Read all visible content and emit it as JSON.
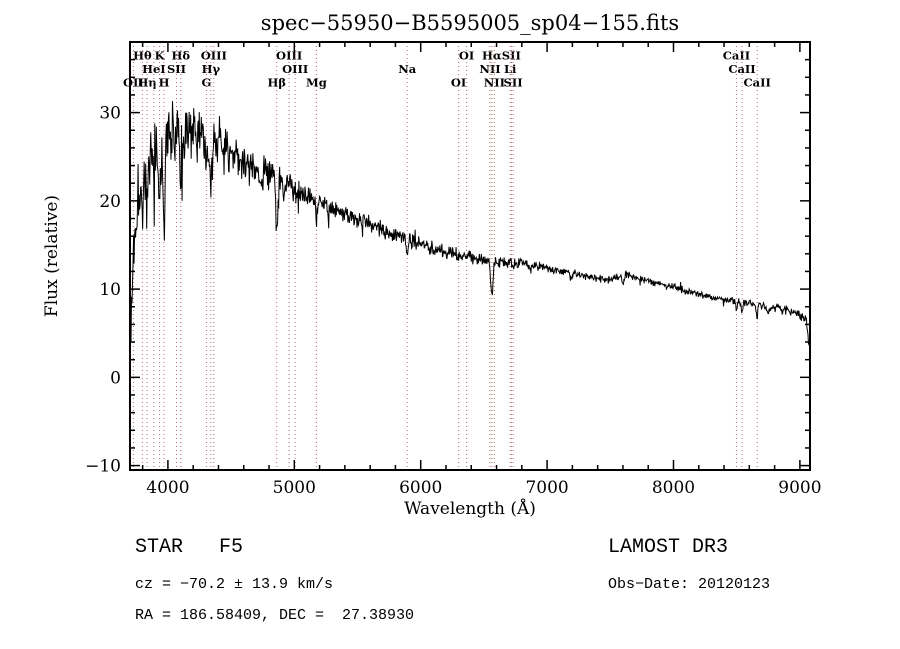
{
  "title": "spec−55950−B5595005_sp04−155.fits",
  "footer": {
    "class_label": "STAR   F5",
    "survey": "LAMOST DR3",
    "cz": "cz = −70.2 ± 13.9 km/s",
    "obs_date": "Obs−Date: 20120123",
    "radec": "RA = 186.58409, DEC =  27.38930"
  },
  "chart_data": {
    "type": "line",
    "title": "spec−55950−B5595005_sp04−155.fits",
    "xlabel": "Wavelength (Å)",
    "ylabel": "Flux (relative)",
    "xlim": [
      3700,
      9080
    ],
    "ylim": [
      -10.5,
      38
    ],
    "xticks": [
      4000,
      5000,
      6000,
      7000,
      8000,
      9000
    ],
    "yticks": [
      -10,
      0,
      10,
      20,
      30
    ],
    "ytick_labels": [
      "−10",
      "0",
      "10",
      "20",
      "30"
    ],
    "x_minor_step": 200,
    "y_minor_step": 2,
    "grid": false,
    "trace_color": "#000000",
    "line_marker_color": "#b36b6b",
    "label_color": "#7e2a2a",
    "spectral_lines": [
      {
        "wavelength": 3727,
        "label": "OII",
        "row": 3
      },
      {
        "wavelength": 3798,
        "label": "Hθ",
        "row": 1
      },
      {
        "wavelength": 3835,
        "label": "Hη",
        "row": 3
      },
      {
        "wavelength": 3889,
        "label": "HeI",
        "row": 2
      },
      {
        "wavelength": 3934,
        "label": "K",
        "row": 1
      },
      {
        "wavelength": 3969,
        "label": "H",
        "row": 3
      },
      {
        "wavelength": 4068,
        "label": "SII",
        "row": 2
      },
      {
        "wavelength": 4102,
        "label": "Hδ",
        "row": 1
      },
      {
        "wavelength": 4305,
        "label": "G",
        "row": 3
      },
      {
        "wavelength": 4340,
        "label": "Hγ",
        "row": 2
      },
      {
        "wavelength": 4363,
        "label": "OIII",
        "row": 1
      },
      {
        "wavelength": 4861,
        "label": "Hβ",
        "row": 3
      },
      {
        "wavelength": 4959,
        "label": "OIII",
        "row": 1
      },
      {
        "wavelength": 5007,
        "label": "OIII",
        "row": 2
      },
      {
        "wavelength": 5175,
        "label": "Mg",
        "row": 3
      },
      {
        "wavelength": 5893,
        "label": "Na",
        "row": 2
      },
      {
        "wavelength": 6300,
        "label": "OI",
        "row": 3
      },
      {
        "wavelength": 6363,
        "label": "OI",
        "row": 1
      },
      {
        "wavelength": 6548,
        "label": "NII",
        "row": 2
      },
      {
        "wavelength": 6563,
        "label": "Hα",
        "row": 1
      },
      {
        "wavelength": 6583,
        "label": "NII",
        "row": 3
      },
      {
        "wavelength": 6708,
        "label": "Li",
        "row": 2
      },
      {
        "wavelength": 6717,
        "label": "SII",
        "row": 1
      },
      {
        "wavelength": 6731,
        "label": "SII",
        "row": 3
      },
      {
        "wavelength": 8498,
        "label": "CaII",
        "row": 1
      },
      {
        "wavelength": 8542,
        "label": "CaII",
        "row": 2
      },
      {
        "wavelength": 8662,
        "label": "CaII",
        "row": 3
      }
    ],
    "continuum": [
      [
        3700,
        2
      ],
      [
        3712,
        8
      ],
      [
        3725,
        14
      ],
      [
        3745,
        19
      ],
      [
        3770,
        22
      ],
      [
        3800,
        23.5
      ],
      [
        3840,
        25
      ],
      [
        3880,
        26
      ],
      [
        3920,
        26.8
      ],
      [
        3960,
        27.2
      ],
      [
        4000,
        27.5
      ],
      [
        4060,
        27.8
      ],
      [
        4120,
        28
      ],
      [
        4200,
        27.8
      ],
      [
        4280,
        27.4
      ],
      [
        4360,
        26.8
      ],
      [
        4440,
        26
      ],
      [
        4520,
        25.2
      ],
      [
        4600,
        24.5
      ],
      [
        4700,
        23.6
      ],
      [
        4800,
        23
      ],
      [
        4900,
        22.2
      ],
      [
        5000,
        21.3
      ],
      [
        5100,
        20.5
      ],
      [
        5200,
        19.8
      ],
      [
        5300,
        19.1
      ],
      [
        5400,
        18.5
      ],
      [
        5500,
        17.9
      ],
      [
        5600,
        17.3
      ],
      [
        5700,
        16.7
      ],
      [
        5800,
        16.1
      ],
      [
        5900,
        15.6
      ],
      [
        6000,
        15.1
      ],
      [
        6100,
        14.6
      ],
      [
        6200,
        14.2
      ],
      [
        6300,
        13.9
      ],
      [
        6400,
        13.6
      ],
      [
        6500,
        13.3
      ],
      [
        6600,
        13.1
      ],
      [
        6700,
        13.0
      ],
      [
        6800,
        12.9
      ],
      [
        6900,
        12.7
      ],
      [
        7000,
        12.4
      ],
      [
        7100,
        12.1
      ],
      [
        7200,
        11.8
      ],
      [
        7350,
        11.3
      ],
      [
        7500,
        11.0
      ],
      [
        7620,
        11.7
      ],
      [
        7700,
        11.3
      ],
      [
        7850,
        10.7
      ],
      [
        8000,
        10.2
      ],
      [
        8150,
        9.6
      ],
      [
        8300,
        9.1
      ],
      [
        8450,
        8.7
      ],
      [
        8600,
        8.4
      ],
      [
        8750,
        8.0
      ],
      [
        8900,
        7.6
      ],
      [
        9000,
        7.2
      ],
      [
        9050,
        6.6
      ],
      [
        9080,
        2.5
      ]
    ],
    "noise_profile": [
      [
        3700,
        3.2
      ],
      [
        3780,
        3.8
      ],
      [
        3900,
        4.0
      ],
      [
        4000,
        3.8
      ],
      [
        4100,
        3.6
      ],
      [
        4250,
        3.2
      ],
      [
        4400,
        2.8
      ],
      [
        4550,
        2.4
      ],
      [
        4700,
        2.1
      ],
      [
        4850,
        1.8
      ],
      [
        5000,
        1.5
      ],
      [
        5200,
        1.25
      ],
      [
        5400,
        1.05
      ],
      [
        5600,
        0.95
      ],
      [
        5800,
        0.85
      ],
      [
        6000,
        0.8
      ],
      [
        6300,
        0.7
      ],
      [
        6600,
        0.6
      ],
      [
        7000,
        0.5
      ],
      [
        7400,
        0.45
      ],
      [
        7800,
        0.42
      ],
      [
        8200,
        0.42
      ],
      [
        8600,
        0.45
      ],
      [
        9000,
        0.5
      ]
    ],
    "absorption_features": [
      [
        3750,
        3,
        6
      ],
      [
        3798,
        5,
        8
      ],
      [
        3835,
        5.5,
        8
      ],
      [
        3889,
        6,
        8
      ],
      [
        3934,
        8.5,
        8
      ],
      [
        3970,
        7.5,
        9
      ],
      [
        4102,
        6.5,
        10
      ],
      [
        4227,
        1.8,
        6
      ],
      [
        4305,
        2.2,
        7
      ],
      [
        4340,
        6,
        10
      ],
      [
        4383,
        1.5,
        5
      ],
      [
        4861,
        5.5,
        9
      ],
      [
        4920,
        1.2,
        6
      ],
      [
        5175,
        1.8,
        9
      ],
      [
        5270,
        1,
        6
      ],
      [
        5893,
        1.8,
        7
      ],
      [
        6563,
        3.8,
        9
      ],
      [
        6870,
        0.8,
        8
      ],
      [
        7190,
        0.6,
        8
      ],
      [
        7600,
        1.0,
        10
      ],
      [
        8498,
        1.1,
        6
      ],
      [
        8542,
        1.3,
        6
      ],
      [
        8662,
        1.3,
        6
      ],
      [
        8750,
        0.8,
        8
      ]
    ],
    "sample_step": 4,
    "noise_seed": 20120123
  }
}
